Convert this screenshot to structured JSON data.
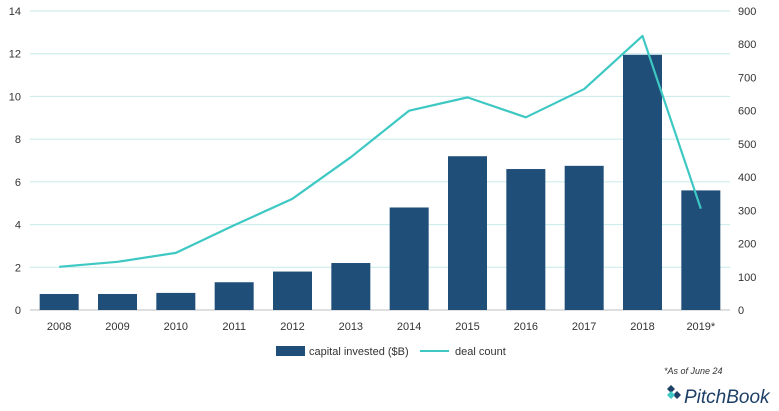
{
  "chart_data": {
    "type": "bar",
    "categories": [
      "2008",
      "2009",
      "2010",
      "2011",
      "2012",
      "2013",
      "2014",
      "2015",
      "2016",
      "2017",
      "2018",
      "2019*"
    ],
    "series": [
      {
        "name": "capital invested ($B)",
        "type": "bar",
        "axis": "left",
        "color": "#1f4e79",
        "values": [
          0.75,
          0.75,
          0.8,
          1.3,
          1.8,
          2.2,
          4.8,
          7.2,
          6.6,
          6.75,
          11.95,
          5.6
        ]
      },
      {
        "name": "deal count",
        "type": "line",
        "axis": "right",
        "color": "#3ec8c3",
        "values": [
          130,
          145,
          172,
          255,
          335,
          460,
          600,
          640,
          580,
          665,
          825,
          305
        ]
      }
    ],
    "y_left": {
      "ylim": [
        0,
        14
      ],
      "ticks": [
        "0",
        "2",
        "4",
        "6",
        "8",
        "10",
        "12",
        "14"
      ]
    },
    "y_right": {
      "ylim": [
        0,
        900
      ],
      "ticks": [
        "0",
        "100",
        "200",
        "300",
        "400",
        "500",
        "600",
        "700",
        "800",
        "900"
      ]
    },
    "grid": true,
    "legend_position": "bottom",
    "xlabel": "",
    "ylabel": ""
  },
  "footnote": "*As of June 24",
  "brand": {
    "name": "PitchBook"
  }
}
